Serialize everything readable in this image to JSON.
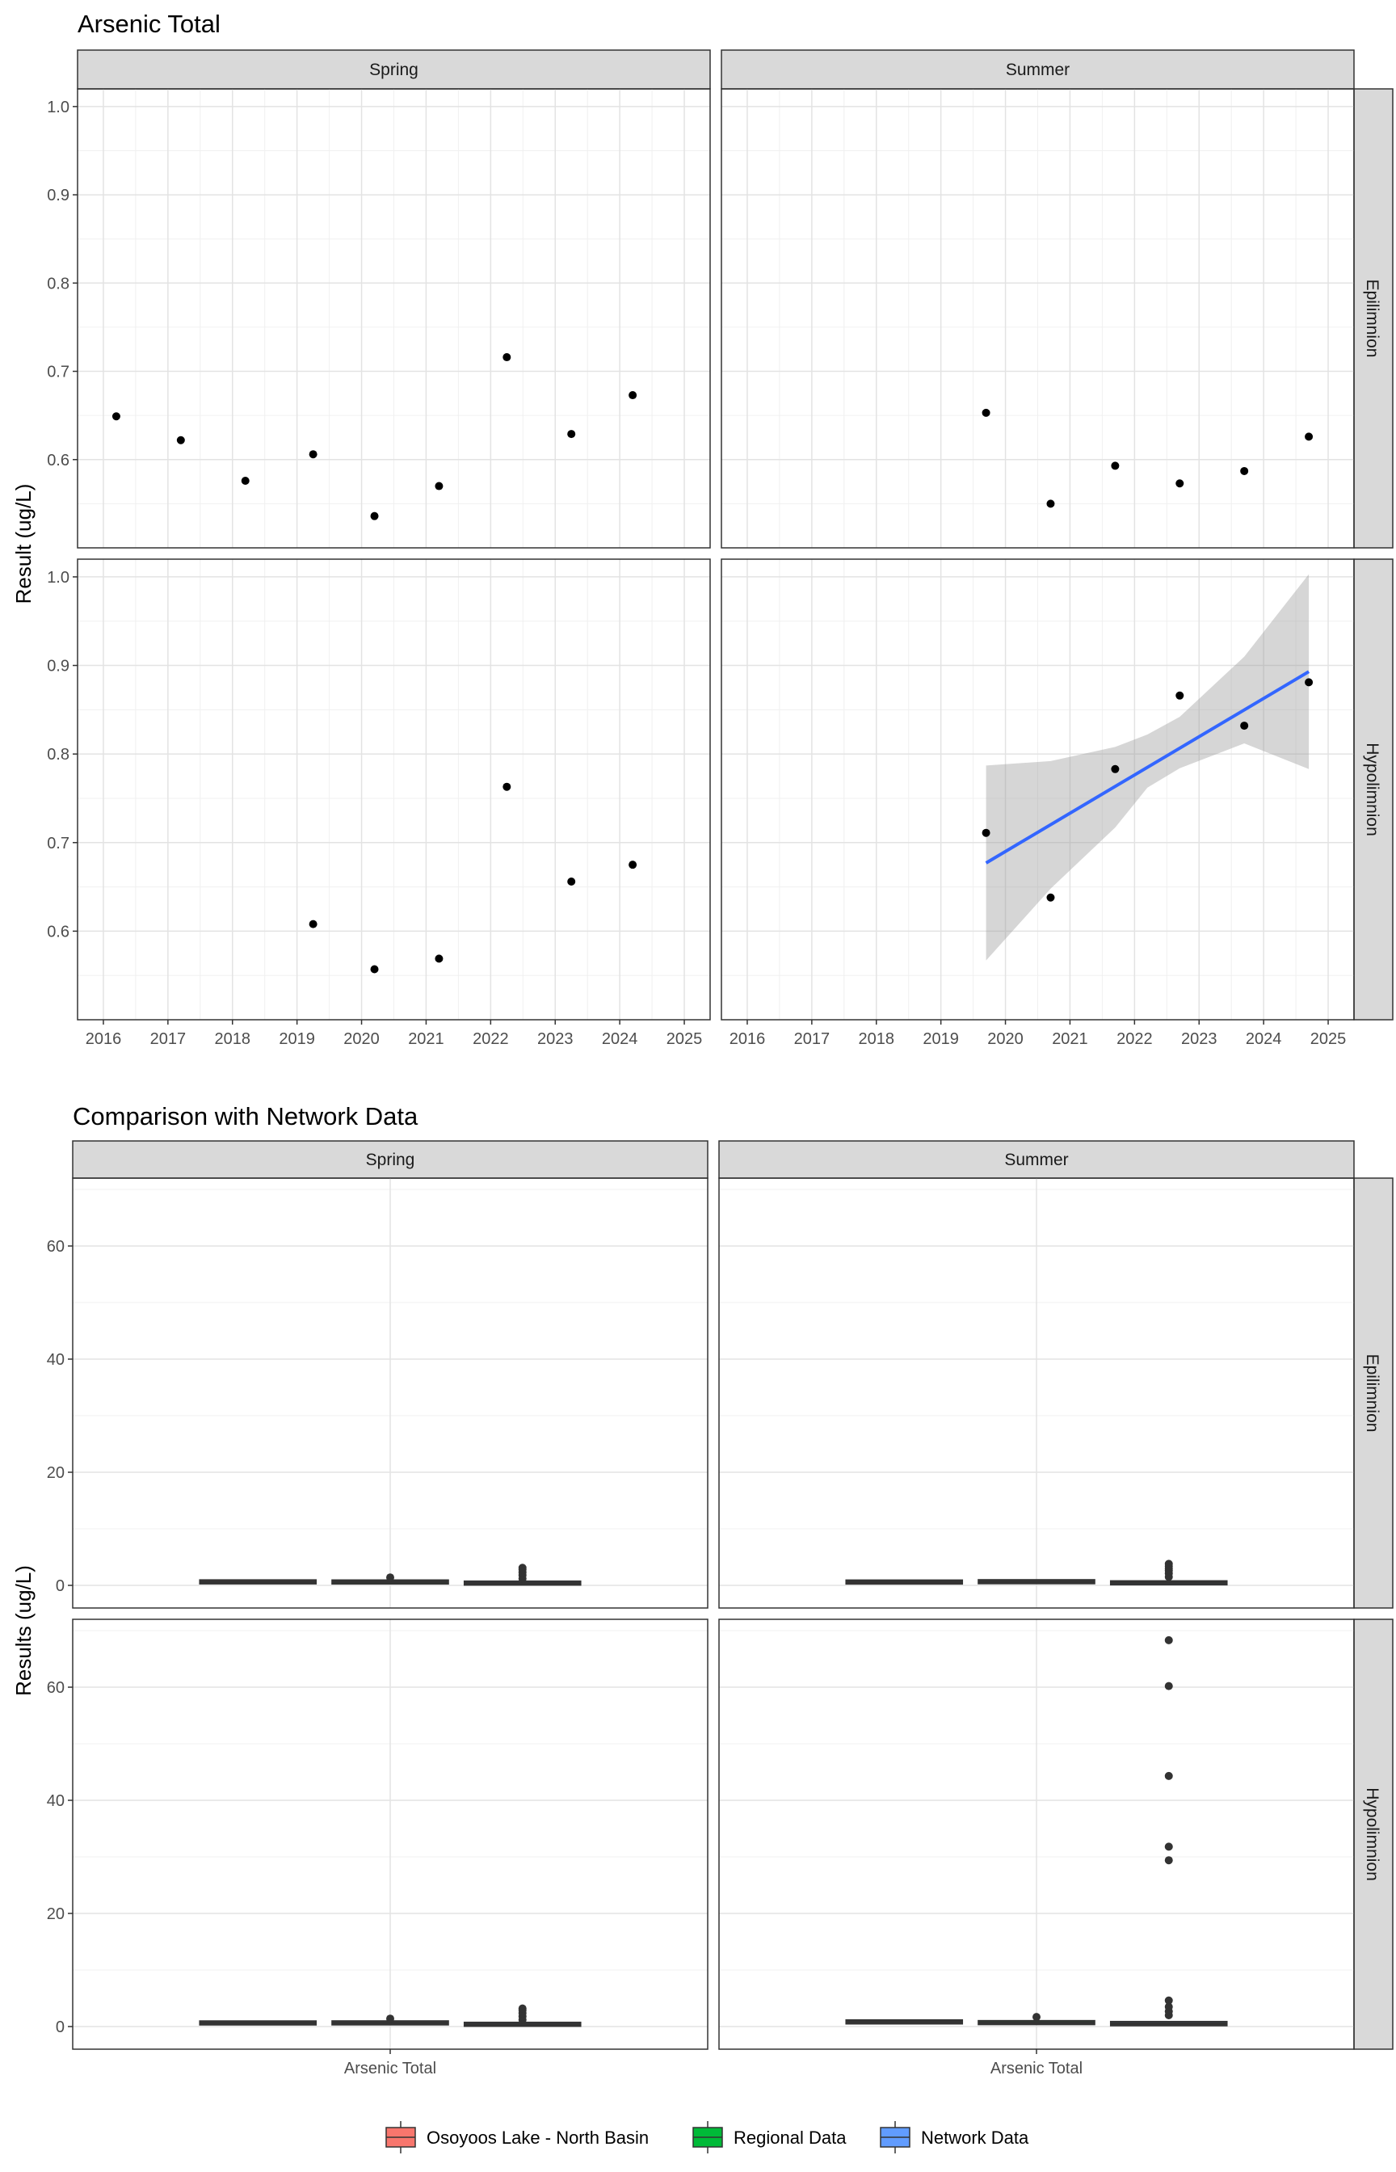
{
  "chart_data": [
    {
      "type": "scatter",
      "title": "Arsenic Total",
      "ylabel": "Result (ug/L)",
      "xlabel": "",
      "columns": [
        "Spring",
        "Summer"
      ],
      "rows": [
        "Epilimnion",
        "Hypolimnion"
      ],
      "xlim": [
        2015.6,
        2025.4
      ],
      "ylim": [
        0.5,
        1.02
      ],
      "x_ticks": [
        2016,
        2017,
        2018,
        2019,
        2020,
        2021,
        2022,
        2023,
        2024,
        2025
      ],
      "y_ticks": [
        0.6,
        0.7,
        0.8,
        0.9,
        1.0
      ],
      "y_tick_labels": [
        "0.6",
        "0.7",
        "0.8",
        "0.9",
        "1.0"
      ],
      "grid": true,
      "panels": [
        {
          "column": "Spring",
          "row": "Epilimnion",
          "points": [
            {
              "x": 2016.2,
              "y": 0.649
            },
            {
              "x": 2017.2,
              "y": 0.622
            },
            {
              "x": 2018.2,
              "y": 0.576
            },
            {
              "x": 2019.25,
              "y": 0.606
            },
            {
              "x": 2020.2,
              "y": 0.536
            },
            {
              "x": 2021.2,
              "y": 0.57
            },
            {
              "x": 2022.25,
              "y": 0.716
            },
            {
              "x": 2023.25,
              "y": 0.629
            },
            {
              "x": 2024.2,
              "y": 0.673
            }
          ]
        },
        {
          "column": "Summer",
          "row": "Epilimnion",
          "points": [
            {
              "x": 2019.7,
              "y": 0.653
            },
            {
              "x": 2020.7,
              "y": 0.55
            },
            {
              "x": 2021.7,
              "y": 0.593
            },
            {
              "x": 2022.7,
              "y": 0.573
            },
            {
              "x": 2023.7,
              "y": 0.587
            },
            {
              "x": 2024.7,
              "y": 0.626
            }
          ]
        },
        {
          "column": "Spring",
          "row": "Hypolimnion",
          "points": [
            {
              "x": 2019.25,
              "y": 0.608
            },
            {
              "x": 2020.2,
              "y": 0.557
            },
            {
              "x": 2021.2,
              "y": 0.569
            },
            {
              "x": 2022.25,
              "y": 0.763
            },
            {
              "x": 2023.25,
              "y": 0.656
            },
            {
              "x": 2024.2,
              "y": 0.675
            }
          ]
        },
        {
          "column": "Summer",
          "row": "Hypolimnion",
          "points": [
            {
              "x": 2019.7,
              "y": 0.711
            },
            {
              "x": 2020.7,
              "y": 0.638
            },
            {
              "x": 2021.7,
              "y": 0.783
            },
            {
              "x": 2022.7,
              "y": 0.866
            },
            {
              "x": 2023.7,
              "y": 0.832
            },
            {
              "x": 2024.7,
              "y": 0.881
            }
          ],
          "trend": {
            "x": [
              2019.7,
              2024.7
            ],
            "y": [
              0.677,
              0.893
            ],
            "color": "#3366FF",
            "band": {
              "x": [
                2019.7,
                2020.7,
                2021.7,
                2022.2,
                2022.7,
                2023.7,
                2024.7
              ],
              "upper": [
                0.787,
                0.792,
                0.808,
                0.822,
                0.842,
                0.91,
                1.003
              ],
              "lower": [
                0.567,
                0.648,
                0.717,
                0.762,
                0.784,
                0.812,
                0.783
              ],
              "color": "#999999"
            }
          }
        }
      ]
    },
    {
      "type": "box",
      "title": "Comparison with Network Data",
      "ylabel": "Results (ug/L)",
      "xlabel": "",
      "columns": [
        "Spring",
        "Summer"
      ],
      "rows": [
        "Epilimnion",
        "Hypolimnion"
      ],
      "x_category": "Arsenic Total",
      "ylim": [
        -4,
        72
      ],
      "y_ticks": [
        0,
        20,
        40,
        60
      ],
      "y_tick_labels": [
        "0",
        "20",
        "40",
        "60"
      ],
      "grid": true,
      "legend": {
        "position": "bottom",
        "items": [
          {
            "label": "Osoyoos Lake - North Basin",
            "color": "#F8766D"
          },
          {
            "label": "Regional Data",
            "color": "#00BA38"
          },
          {
            "label": "Network Data",
            "color": "#619CFF"
          }
        ]
      },
      "panels": [
        {
          "column": "Spring",
          "row": "Epilimnion",
          "boxes": [
            {
              "group": "Osoyoos Lake - North Basin",
              "q1": 0.55,
              "median": 0.62,
              "q3": 0.67,
              "outliers": []
            },
            {
              "group": "Regional Data",
              "q1": 0.5,
              "median": 0.6,
              "q3": 0.75,
              "outliers": [
                1.4
              ]
            },
            {
              "group": "Network Data",
              "q1": 0.2,
              "median": 0.4,
              "q3": 0.6,
              "outliers": [
                1.2,
                1.8,
                2.3,
                2.8,
                3.1
              ]
            }
          ]
        },
        {
          "column": "Summer",
          "row": "Epilimnion",
          "boxes": [
            {
              "group": "Osoyoos Lake - North Basin",
              "q1": 0.55,
              "median": 0.59,
              "q3": 0.63,
              "outliers": []
            },
            {
              "group": "Regional Data",
              "q1": 0.5,
              "median": 0.65,
              "q3": 0.8,
              "outliers": []
            },
            {
              "group": "Network Data",
              "q1": 0.2,
              "median": 0.45,
              "q3": 0.7,
              "outliers": [
                1.5,
                2.1,
                2.6,
                3.0,
                3.4,
                3.8
              ]
            }
          ]
        },
        {
          "column": "Spring",
          "row": "Hypolimnion",
          "boxes": [
            {
              "group": "Osoyoos Lake - North Basin",
              "q1": 0.57,
              "median": 0.64,
              "q3": 0.68,
              "outliers": []
            },
            {
              "group": "Regional Data",
              "q1": 0.5,
              "median": 0.65,
              "q3": 0.8,
              "outliers": [
                1.4
              ]
            },
            {
              "group": "Network Data",
              "q1": 0.2,
              "median": 0.4,
              "q3": 0.6,
              "outliers": [
                1.2,
                1.8,
                2.4,
                2.9,
                3.2
              ]
            }
          ]
        },
        {
          "column": "Summer",
          "row": "Hypolimnion",
          "boxes": [
            {
              "group": "Osoyoos Lake - North Basin",
              "q1": 0.71,
              "median": 0.82,
              "q3": 0.87,
              "outliers": []
            },
            {
              "group": "Regional Data",
              "q1": 0.5,
              "median": 0.7,
              "q3": 0.9,
              "outliers": [
                1.7
              ]
            },
            {
              "group": "Network Data",
              "q1": 0.3,
              "median": 0.5,
              "q3": 0.9,
              "outliers": [
                2.0,
                2.7,
                3.5,
                4.6,
                29.4,
                31.8,
                44.3,
                60.2,
                68.3
              ]
            }
          ]
        }
      ]
    }
  ]
}
